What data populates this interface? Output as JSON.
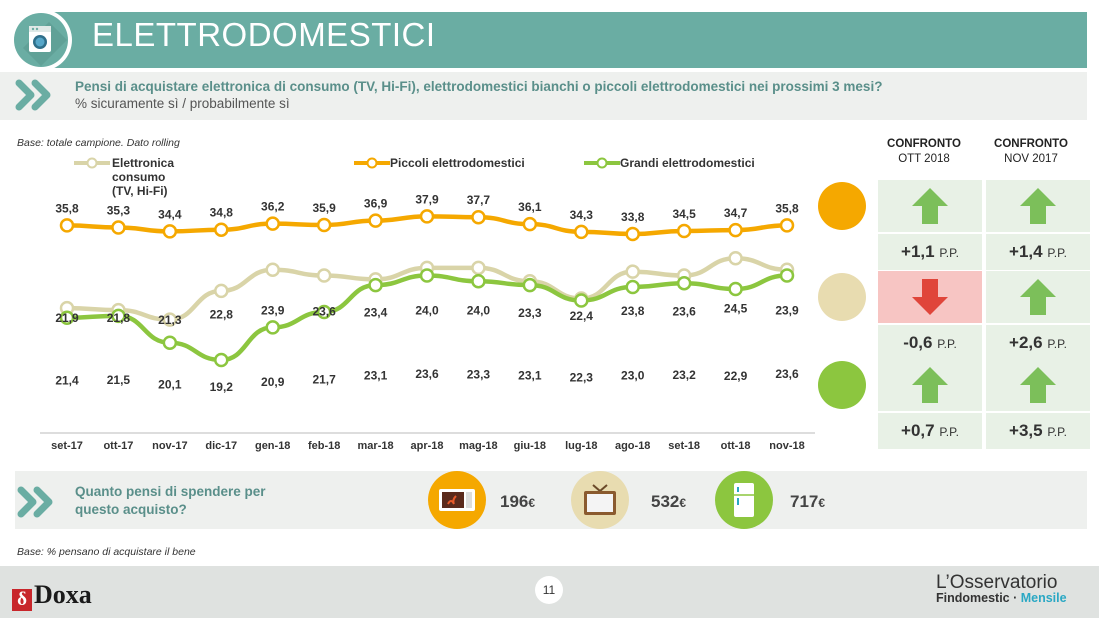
{
  "header": {
    "title": "ELETTRODOMESTICI",
    "icon": "washing-machine-icon"
  },
  "question": {
    "text": "Pensi di acquistare elettronica di consumo (TV, Hi-Fi), elettrodomestici bianchi o piccoli elettrodomestici nei prossimi 3 mesi?",
    "subtitle": "% sicuramente sì / probabilmente sì"
  },
  "base_note": "Base: totale campione. Dato rolling",
  "chart_data": {
    "type": "line",
    "categories": [
      "set-17",
      "ott-17",
      "nov-17",
      "dic-17",
      "gen-18",
      "feb-18",
      "mar-18",
      "apr-18",
      "mag-18",
      "giu-18",
      "lug-18",
      "ago-18",
      "set-18",
      "ott-18",
      "nov-18"
    ],
    "series": [
      {
        "name": "Elettronica consumo (TV, Hi-Fi)",
        "color": "#d9d4a8",
        "values": [
          21.9,
          21.8,
          21.3,
          22.8,
          23.9,
          23.6,
          23.4,
          24.0,
          24.0,
          23.3,
          22.4,
          23.8,
          23.6,
          24.5,
          23.9
        ],
        "labels": [
          "21,9",
          "21,8",
          "21,3",
          "22,8",
          "23,9",
          "23,6",
          "23,4",
          "24,0",
          "24,0",
          "23,3",
          "22,4",
          "23,8",
          "23,6",
          "24,5",
          "23,9"
        ]
      },
      {
        "name": "Piccoli elettrodomestici",
        "color": "#f5a800",
        "values": [
          35.8,
          35.3,
          34.4,
          34.8,
          36.2,
          35.9,
          36.9,
          37.9,
          37.7,
          36.1,
          34.3,
          33.8,
          34.5,
          34.7,
          35.8
        ],
        "labels": [
          "35,8",
          "35,3",
          "34,4",
          "34,8",
          "36,2",
          "35,9",
          "36,9",
          "37,9",
          "37,7",
          "36,1",
          "34,3",
          "33,8",
          "34,5",
          "34,7",
          "35,8"
        ]
      },
      {
        "name": "Grandi elettrodomestici",
        "color": "#8cc63f",
        "values": [
          21.4,
          21.5,
          20.1,
          19.2,
          20.9,
          21.7,
          23.1,
          23.6,
          23.3,
          23.1,
          22.3,
          23.0,
          23.2,
          22.9,
          23.6
        ],
        "labels": [
          "21,4",
          "21,5",
          "20,1",
          "19,2",
          "20,9",
          "21,7",
          "23,1",
          "23,6",
          "23,3",
          "23,1",
          "22,3",
          "23,0",
          "23,2",
          "22,9",
          "23,6"
        ]
      }
    ]
  },
  "comparison": {
    "headers": [
      {
        "title": "CONFRONTO",
        "sub": "OTT 2018"
      },
      {
        "title": "CONFRONTO",
        "sub": "NOV 2017"
      }
    ],
    "rows": [
      {
        "icon": "microwave-icon",
        "ott": {
          "dir": "up",
          "value": "+1,1",
          "unit": "P.P."
        },
        "nov": {
          "dir": "up",
          "value": "+1,4",
          "unit": "P.P."
        }
      },
      {
        "icon": "tv-icon",
        "ott": {
          "dir": "down",
          "value": "-0,6",
          "unit": "P.P."
        },
        "nov": {
          "dir": "up",
          "value": "+2,6",
          "unit": "P.P."
        }
      },
      {
        "icon": "fridge-icon",
        "ott": {
          "dir": "up",
          "value": "+0,7",
          "unit": "P.P."
        },
        "nov": {
          "dir": "up",
          "value": "+3,5",
          "unit": "P.P."
        }
      }
    ]
  },
  "spend": {
    "question": "Quanto pensi di spendere per questo acquisto?",
    "items": [
      {
        "icon": "microwave-icon",
        "amount": "196",
        "currency": "€"
      },
      {
        "icon": "tv-icon",
        "amount": "532",
        "currency": "€"
      },
      {
        "icon": "fridge-icon",
        "amount": "717",
        "currency": "€"
      }
    ]
  },
  "base_note_2": "Base: % pensano di acquistare il bene",
  "footer": {
    "logo_mark": "δ",
    "logo_text": "Doxa",
    "page_number": "11",
    "brand_line1": "L’Osservatorio",
    "brand_line2_a": "Findomestic · ",
    "brand_line2_b": "Mensile"
  },
  "colors": {
    "teal": "#6aada3",
    "orange": "#f5a800",
    "green": "#8cc63f",
    "beige": "#d9d4a8",
    "arrow_green": "#7cbf5a",
    "arrow_red": "#e0453a"
  }
}
